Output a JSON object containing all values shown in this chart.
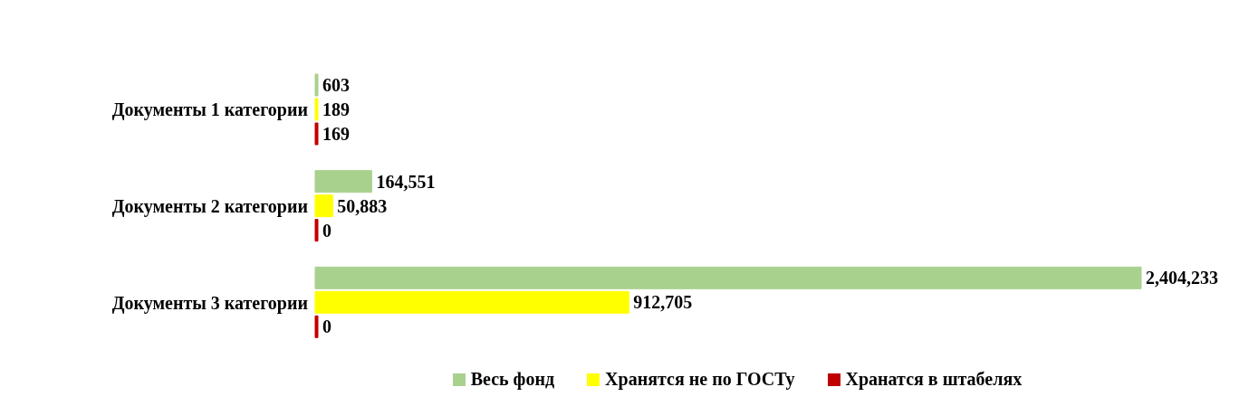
{
  "chart_data": {
    "type": "bar",
    "orientation": "horizontal",
    "categories": [
      "Документы 1 категории",
      "Документы 2 категории",
      "Документы 3 категории"
    ],
    "series": [
      {
        "name": "Весь фонд",
        "color": "#a9d18e",
        "values": [
          603,
          164551,
          2404233
        ],
        "value_labels": [
          "603",
          "164,551",
          "2,404,233"
        ]
      },
      {
        "name": "Хранятся не по ГОСТу",
        "color": "#ffff00",
        "values": [
          189,
          50883,
          912705
        ],
        "value_labels": [
          "189",
          "50,883",
          "912,705"
        ]
      },
      {
        "name": "Хранатся в штабелях",
        "color": "#c00000",
        "values": [
          169,
          0,
          0
        ],
        "value_labels": [
          "169",
          "0",
          "0"
        ]
      }
    ],
    "legend": "bottom",
    "grid": false
  }
}
